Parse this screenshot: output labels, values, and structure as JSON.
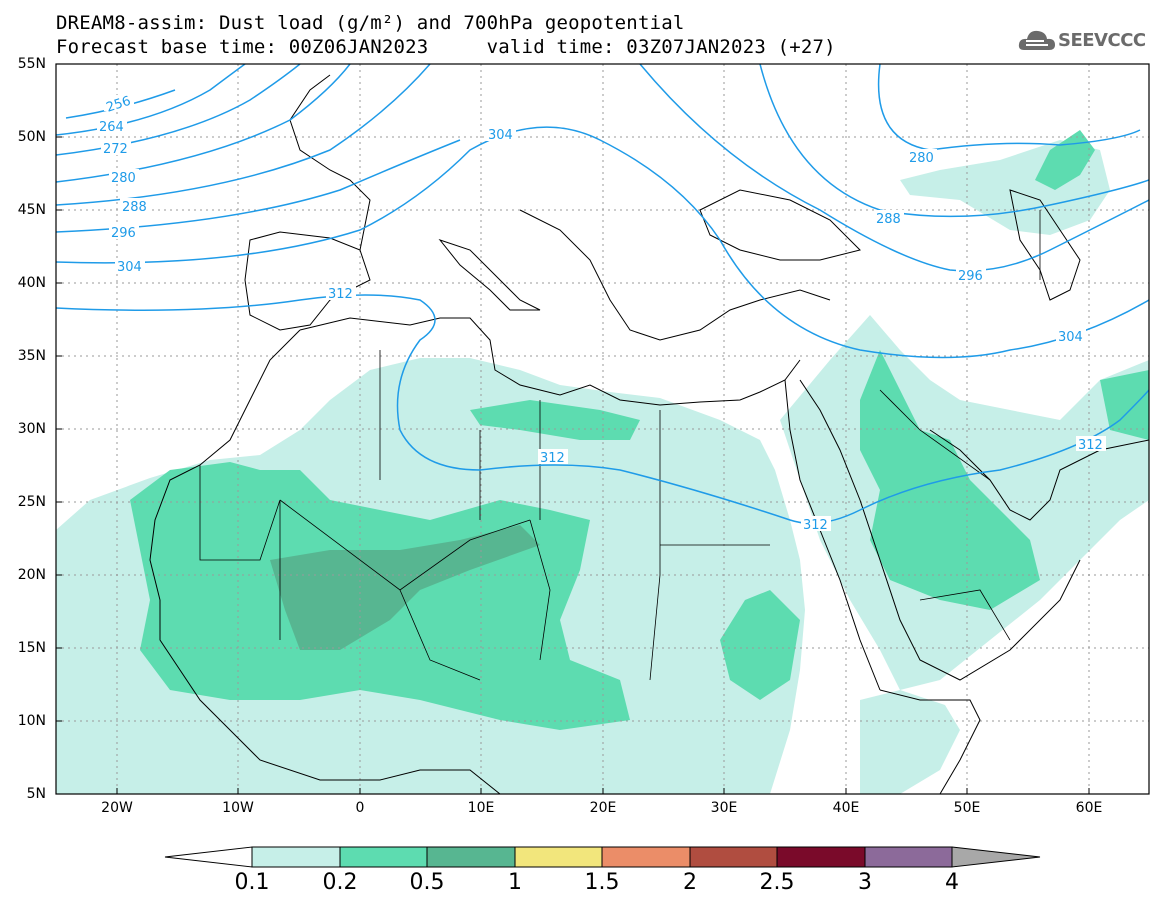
{
  "title": {
    "line1": "DREAM8-assim: Dust load (g/m²) and 700hPa geopotential",
    "line2": "Forecast base time: 00Z06JAN2023     valid time: 03Z07JAN2023 (+27)"
  },
  "logo": {
    "text": "SEEVCCC",
    "icon": "cloud-icon"
  },
  "axes": {
    "lat_labels": [
      "55N",
      "50N",
      "45N",
      "40N",
      "35N",
      "30N",
      "25N",
      "20N",
      "15N",
      "10N",
      "5N"
    ],
    "lon_labels": [
      "20W",
      "10W",
      "0",
      "10E",
      "20E",
      "30E",
      "40E",
      "50E",
      "60E"
    ]
  },
  "map_extent": {
    "lon_min": -25,
    "lon_max": 65,
    "lat_min": 5,
    "lat_max": 55
  },
  "contour_labels": {
    "c256": "256",
    "c264": "264",
    "c272": "272",
    "c280": "280",
    "c288": "288",
    "c296": "296",
    "c304": "304",
    "c312": "312"
  },
  "colorbar": {
    "labels": [
      "0.1",
      "0.2",
      "0.5",
      "1",
      "1.5",
      "2",
      "2.5",
      "3",
      "4"
    ],
    "colors": [
      "#ffffff",
      "#c6efe8",
      "#5ddcb0",
      "#57b691",
      "#f2e67c",
      "#eb8d68",
      "#b04d40",
      "#7a0a2a",
      "#8c6a9a",
      "#a8a8a8"
    ]
  },
  "colors": {
    "contour": "#1f9be8",
    "land_border": "#000000",
    "grid": "#999999"
  }
}
